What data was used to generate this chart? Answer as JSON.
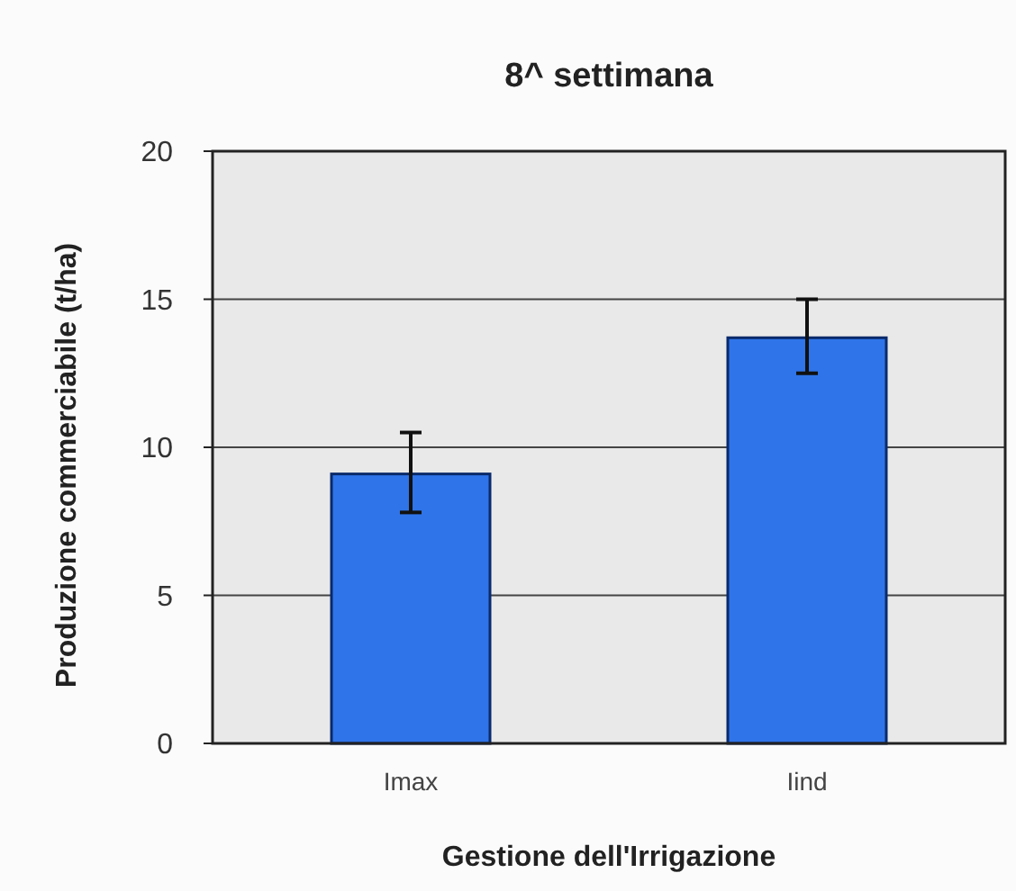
{
  "chart_data": {
    "type": "bar",
    "title": "8^ settimana",
    "xlabel": "Gestione dell'Irrigazione",
    "ylabel": "Produzione commerciabile (t/ha)",
    "categories": [
      "Imax",
      "Iind"
    ],
    "values": [
      9.1,
      13.7
    ],
    "errors": [
      [
        7.8,
        10.5
      ],
      [
        12.5,
        15.0
      ]
    ],
    "color": "#2f74e8",
    "ylim": [
      0,
      20
    ],
    "yticks": [
      0,
      5,
      10,
      15,
      20
    ],
    "grid": "y"
  }
}
